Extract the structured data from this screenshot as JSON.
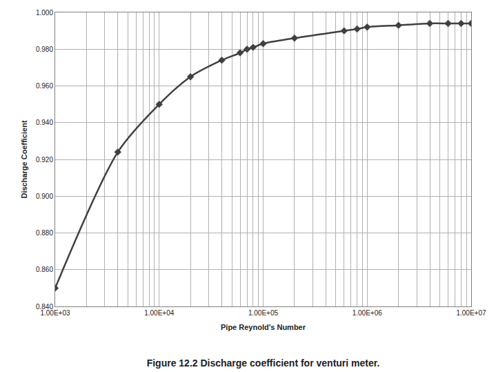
{
  "chart_data": {
    "type": "line",
    "title": "Figure 12.2 Discharge coefficient for venturi meter.",
    "x_label": "Pipe Reynold's Number",
    "y_label": "Discharge Coefficient",
    "log": "x",
    "grid": true,
    "color": "#404040",
    "marker": "diamond",
    "line_style": "spline",
    "x": [
      1000,
      4000,
      10000,
      20000,
      40000,
      60000,
      70000,
      80000,
      100000,
      200000,
      600000,
      800000,
      1000000,
      2000000,
      4000000,
      6000000,
      8000000,
      10000000
    ],
    "values": [
      0.85,
      0.924,
      0.95,
      0.965,
      0.974,
      0.978,
      0.98,
      0.981,
      0.983,
      0.986,
      0.99,
      0.991,
      0.992,
      0.993,
      0.994,
      0.994,
      0.994,
      0.994
    ],
    "xlim": [
      1000,
      10000000
    ],
    "xticks": [
      {
        "value": 1000,
        "label": "1.00E+03"
      },
      {
        "value": 10000,
        "label": "1.00E+04"
      },
      {
        "value": 100000,
        "label": "1.00E+05"
      },
      {
        "value": 1000000,
        "label": "1.00E+06"
      },
      {
        "value": 10000000,
        "label": "1.00E+07"
      }
    ],
    "ylim": [
      0.84,
      1.0
    ],
    "yticks": [
      {
        "value": 0.84,
        "label": "0.840"
      },
      {
        "value": 0.86,
        "label": "0.860"
      },
      {
        "value": 0.88,
        "label": "0.880"
      },
      {
        "value": 0.9,
        "label": "0.900"
      },
      {
        "value": 0.92,
        "label": "0.920"
      },
      {
        "value": 0.94,
        "label": "0.940"
      },
      {
        "value": 0.96,
        "label": "0.960"
      },
      {
        "value": 0.98,
        "label": "0.980"
      },
      {
        "value": 1.0,
        "label": "1.000"
      }
    ]
  }
}
